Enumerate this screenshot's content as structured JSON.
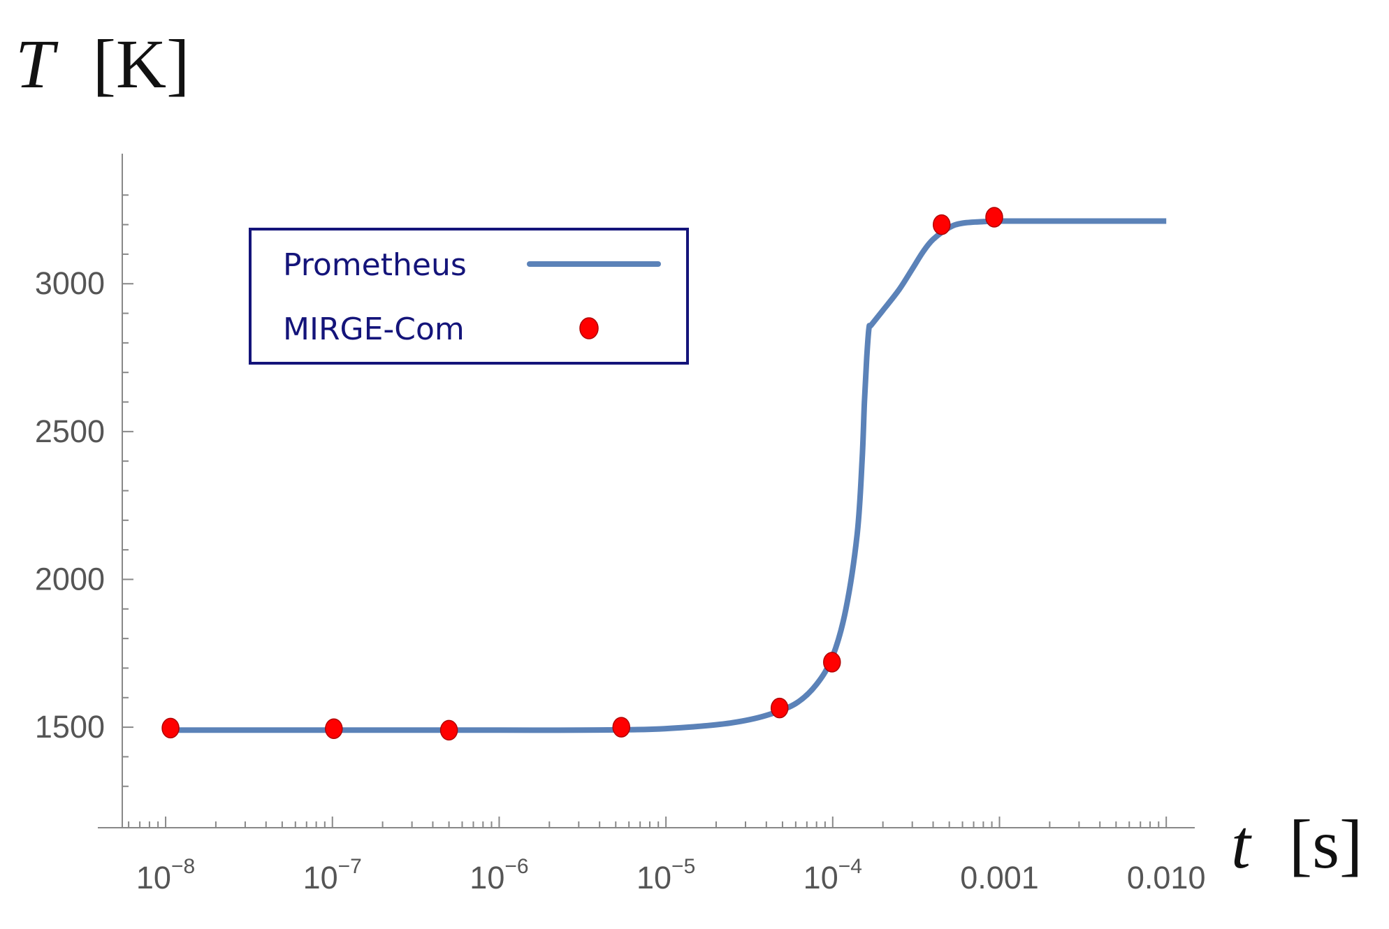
{
  "chart_data": {
    "type": "line",
    "xscale": "log",
    "xlim": [
      6e-09,
      0.012
    ],
    "ylim": [
      1300,
      3300
    ],
    "ylabel": {
      "symbol": "T",
      "unit": "[K]"
    },
    "xlabel": {
      "symbol": "t",
      "unit": "[s]"
    },
    "yticks": [
      1500,
      2000,
      2500,
      3000
    ],
    "yticks_minor_step": 100,
    "xticks": [
      {
        "value": 1e-08,
        "base": "10",
        "exp": "−8"
      },
      {
        "value": 1e-07,
        "base": "10",
        "exp": "−7"
      },
      {
        "value": 1e-06,
        "base": "10",
        "exp": "−6"
      },
      {
        "value": 1e-05,
        "base": "10",
        "exp": "−5"
      },
      {
        "value": 0.0001,
        "base": "10",
        "exp": "−4"
      },
      {
        "value": 0.001,
        "base": "0.001",
        "exp": ""
      },
      {
        "value": 0.01,
        "base": "0.010",
        "exp": ""
      }
    ],
    "legend": {
      "placement": "top-left",
      "entries": [
        {
          "label": "Prometheus",
          "marker": "line"
        },
        {
          "label": "MIRGE-Com",
          "marker": "dot"
        }
      ]
    },
    "series": [
      {
        "name": "Prometheus",
        "style": "line",
        "color": "#5b82b8",
        "x": [
          1e-08,
          1e-07,
          1e-06,
          3e-06,
          8e-06,
          1.5e-05,
          2.5e-05,
          4e-05,
          6e-05,
          8e-05,
          0.0001,
          0.00012,
          0.00014,
          0.00015,
          0.000155,
          0.00016,
          0.000165,
          0.00017,
          0.0002,
          0.00025,
          0.0003,
          0.00035,
          0.0004,
          0.0005,
          0.0006,
          0.0008,
          0.001,
          0.003,
          0.01
        ],
        "y": [
          1490,
          1490,
          1490,
          1490,
          1493,
          1502,
          1515,
          1540,
          1580,
          1645,
          1740,
          1900,
          2150,
          2400,
          2600,
          2750,
          2850,
          2860,
          2910,
          2980,
          3050,
          3110,
          3150,
          3190,
          3205,
          3210,
          3212,
          3212,
          3212
        ]
      },
      {
        "name": "MIRGE-Com",
        "style": "scatter",
        "color": "#ff0000",
        "x": [
          1.07e-08,
          1.02e-07,
          5e-07,
          5.4e-06,
          4.8e-05,
          9.9e-05,
          0.00045,
          0.00093
        ],
        "y": [
          1497,
          1495,
          1490,
          1500,
          1565,
          1720,
          3200,
          3225
        ]
      }
    ]
  }
}
